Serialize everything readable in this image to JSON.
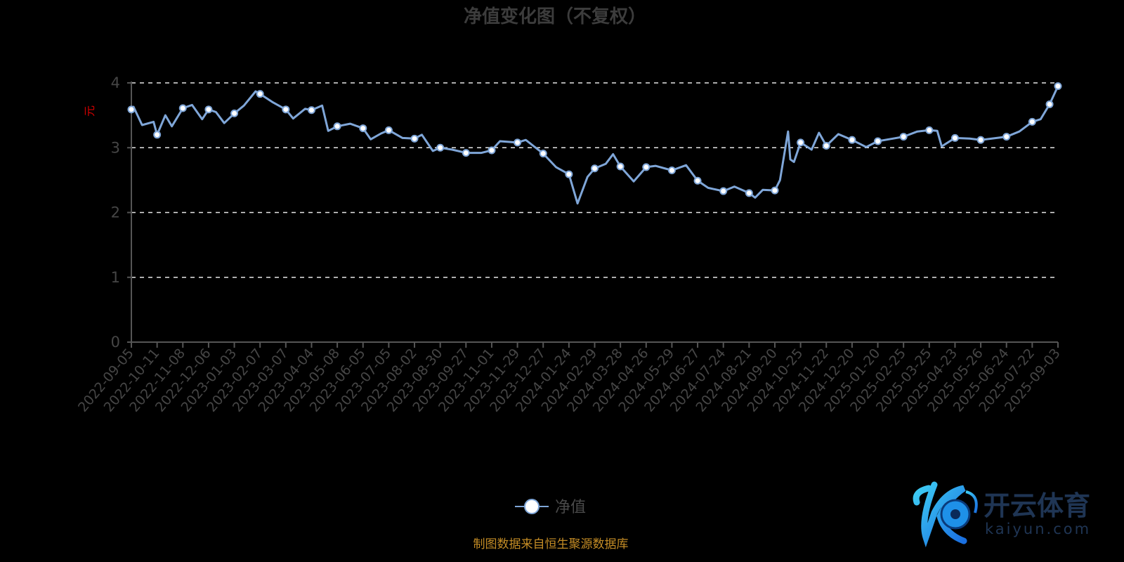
{
  "chart_data": {
    "type": "line",
    "title": "净值变化图（不复权）",
    "ylabel": "元",
    "xlabel": "",
    "ylim": [
      0,
      4
    ],
    "yticks": [
      "0",
      "1",
      "2",
      "3",
      "4"
    ],
    "grid": true,
    "legend_position": "bottom",
    "x_tick_labels": [
      "2022-09-05",
      "2022-10-11",
      "2022-11-08",
      "2022-12-06",
      "2023-01-03",
      "2023-02-07",
      "2023-03-07",
      "2023-04-04",
      "2023-05-08",
      "2023-06-05",
      "2023-07-05",
      "2023-08-02",
      "2023-08-30",
      "2023-09-27",
      "2023-11-01",
      "2023-11-29",
      "2023-12-27",
      "2024-01-24",
      "2024-02-29",
      "2024-03-28",
      "2024-04-26",
      "2024-05-29",
      "2024-06-27",
      "2024-07-24",
      "2024-08-21",
      "2024-09-20",
      "2024-10-25",
      "2024-11-22",
      "2024-12-20",
      "2025-01-20",
      "2025-02-25",
      "2025-03-25",
      "2025-04-23",
      "2025-05-26",
      "2025-06-24",
      "2025-07-22",
      "2025-09-03"
    ],
    "series": [
      {
        "name": "净值",
        "color": "#7fa6d8",
        "points": [
          [
            "2022-09-05",
            3.59,
            1
          ],
          [
            "2022-09-08",
            3.63,
            0
          ],
          [
            "2022-09-20",
            3.35,
            0
          ],
          [
            "2022-10-06",
            3.4,
            0
          ],
          [
            "2022-10-11",
            3.2,
            1
          ],
          [
            "2022-10-20",
            3.5,
            0
          ],
          [
            "2022-10-27",
            3.33,
            0
          ],
          [
            "2022-11-08",
            3.61,
            1
          ],
          [
            "2022-11-18",
            3.66,
            0
          ],
          [
            "2022-11-29",
            3.44,
            0
          ],
          [
            "2022-12-06",
            3.59,
            1
          ],
          [
            "2022-12-14",
            3.55,
            0
          ],
          [
            "2022-12-23",
            3.38,
            0
          ],
          [
            "2023-01-03",
            3.53,
            1
          ],
          [
            "2023-01-16",
            3.65,
            0
          ],
          [
            "2023-02-01",
            3.87,
            0
          ],
          [
            "2023-02-07",
            3.83,
            1
          ],
          [
            "2023-02-21",
            3.7,
            0
          ],
          [
            "2023-03-07",
            3.59,
            1
          ],
          [
            "2023-03-15",
            3.45,
            0
          ],
          [
            "2023-03-28",
            3.6,
            0
          ],
          [
            "2023-04-04",
            3.58,
            1
          ],
          [
            "2023-04-18",
            3.65,
            0
          ],
          [
            "2023-04-26",
            3.26,
            0
          ],
          [
            "2023-05-08",
            3.33,
            1
          ],
          [
            "2023-05-22",
            3.37,
            0
          ],
          [
            "2023-06-05",
            3.3,
            1
          ],
          [
            "2023-06-14",
            3.13,
            0
          ],
          [
            "2023-06-26",
            3.22,
            0
          ],
          [
            "2023-07-05",
            3.27,
            1
          ],
          [
            "2023-07-20",
            3.15,
            0
          ],
          [
            "2023-08-02",
            3.14,
            1
          ],
          [
            "2023-08-10",
            3.2,
            0
          ],
          [
            "2023-08-22",
            2.95,
            0
          ],
          [
            "2023-08-30",
            3.0,
            1
          ],
          [
            "2023-09-12",
            2.97,
            0
          ],
          [
            "2023-09-27",
            2.92,
            1
          ],
          [
            "2023-10-18",
            2.92,
            0
          ],
          [
            "2023-11-01",
            2.96,
            1
          ],
          [
            "2023-11-10",
            3.1,
            0
          ],
          [
            "2023-11-29",
            3.08,
            1
          ],
          [
            "2023-12-08",
            3.12,
            0
          ],
          [
            "2023-12-27",
            2.91,
            1
          ],
          [
            "2024-01-10",
            2.7,
            0
          ],
          [
            "2024-01-24",
            2.59,
            1
          ],
          [
            "2024-02-05",
            2.14,
            0
          ],
          [
            "2024-02-19",
            2.55,
            0
          ],
          [
            "2024-02-29",
            2.68,
            1
          ],
          [
            "2024-03-12",
            2.75,
            0
          ],
          [
            "2024-03-20",
            2.9,
            0
          ],
          [
            "2024-03-28",
            2.71,
            1
          ],
          [
            "2024-04-12",
            2.48,
            0
          ],
          [
            "2024-04-26",
            2.7,
            1
          ],
          [
            "2024-05-08",
            2.72,
            0
          ],
          [
            "2024-05-29",
            2.65,
            1
          ],
          [
            "2024-06-14",
            2.73,
            0
          ],
          [
            "2024-06-27",
            2.49,
            1
          ],
          [
            "2024-07-08",
            2.38,
            0
          ],
          [
            "2024-07-24",
            2.33,
            1
          ],
          [
            "2024-08-05",
            2.4,
            0
          ],
          [
            "2024-08-21",
            2.3,
            1
          ],
          [
            "2024-08-28",
            2.23,
            0
          ],
          [
            "2024-09-06",
            2.35,
            0
          ],
          [
            "2024-09-20",
            2.34,
            1
          ],
          [
            "2024-09-27",
            2.5,
            0
          ],
          [
            "2024-10-08",
            3.25,
            0
          ],
          [
            "2024-10-11",
            2.82,
            0
          ],
          [
            "2024-10-16",
            2.78,
            0
          ],
          [
            "2024-10-25",
            3.08,
            1
          ],
          [
            "2024-11-06",
            2.97,
            0
          ],
          [
            "2024-11-14",
            3.23,
            0
          ],
          [
            "2024-11-22",
            3.03,
            1
          ],
          [
            "2024-12-05",
            3.21,
            0
          ],
          [
            "2024-12-20",
            3.12,
            1
          ],
          [
            "2025-01-06",
            3.01,
            0
          ],
          [
            "2025-01-20",
            3.1,
            1
          ],
          [
            "2025-02-10",
            3.14,
            0
          ],
          [
            "2025-02-25",
            3.17,
            1
          ],
          [
            "2025-03-12",
            3.25,
            0
          ],
          [
            "2025-03-25",
            3.27,
            1
          ],
          [
            "2025-04-03",
            3.26,
            0
          ],
          [
            "2025-04-08",
            3.02,
            0
          ],
          [
            "2025-04-23",
            3.15,
            1
          ],
          [
            "2025-05-12",
            3.14,
            0
          ],
          [
            "2025-05-26",
            3.12,
            1
          ],
          [
            "2025-06-24",
            3.17,
            1
          ],
          [
            "2025-07-08",
            3.25,
            0
          ],
          [
            "2025-07-22",
            3.4,
            1
          ],
          [
            "2025-08-05",
            3.44,
            0
          ],
          [
            "2025-08-20",
            3.67,
            1
          ],
          [
            "2025-09-03",
            3.95,
            1
          ]
        ]
      }
    ]
  },
  "legend": {
    "label": "净值"
  },
  "source": "制图数据来自恒生聚源数据库",
  "watermark": {
    "cn": "开云体育",
    "en": "kaiyun.com"
  },
  "colors": {
    "line": "#7fa6d8",
    "marker_fill": "#ffffff",
    "grid": "#e6e6e6",
    "axis": "#555555",
    "yname": "#d40000",
    "source": "#c48c25"
  }
}
